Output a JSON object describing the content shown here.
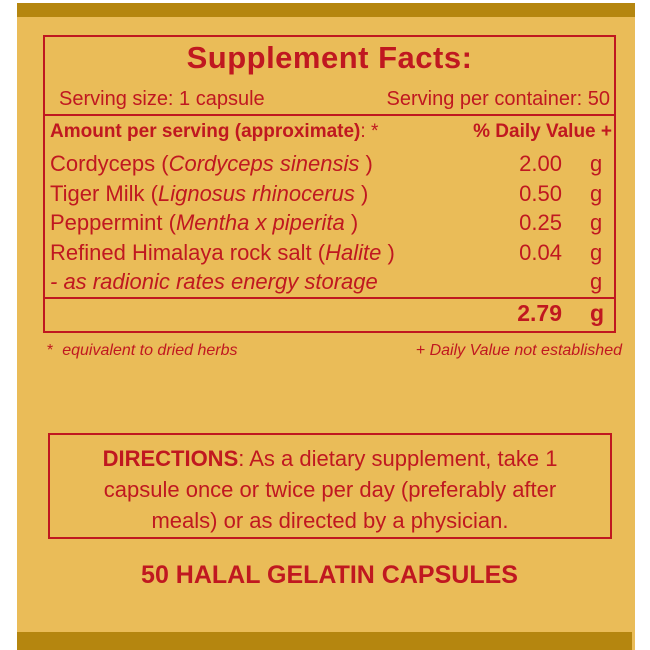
{
  "colors": {
    "label_gold": "#EABC58",
    "bar_gold": "#B5860F",
    "text_red": "#C01820",
    "page_background": "#FFFFFF"
  },
  "facts": {
    "title": "Supplement Facts:",
    "serving_size": "Serving size: 1 capsule",
    "servings_per_container": "Serving per container: 50",
    "amount_header": "Amount per serving (approximate)",
    "amount_header_suffix": ": *",
    "daily_value_header": "% Daily Value +",
    "rows": [
      {
        "prefix": "Cordyceps (",
        "italic": "Cordyceps sinensis",
        "suffix": " )",
        "amount": "2.00",
        "unit": "g"
      },
      {
        "prefix": "Tiger Milk (",
        "italic": "Lignosus rhinocerus",
        "suffix": " )",
        "amount": "0.50",
        "unit": "g"
      },
      {
        "prefix": "Peppermint (",
        "italic": "Mentha x piperita",
        "suffix": " )",
        "amount": "0.25",
        "unit": "g"
      },
      {
        "prefix": "Refined Himalaya rock salt (",
        "italic": "Halite",
        "suffix": " )",
        "amount": "0.04",
        "unit": "g"
      },
      {
        "prefix": "",
        "italic": "- as radionic rates energy storage",
        "suffix": "",
        "amount": "",
        "unit": "g"
      }
    ],
    "total": {
      "amount": "2.79",
      "unit": "g"
    },
    "footnotes": {
      "left_symbol": "*",
      "left_text": "equivalent to dried herbs",
      "right_text": "+ Daily Value not established"
    }
  },
  "directions": {
    "heading": "DIRECTIONS",
    "line1_rest": ": As a dietary supplement, take 1",
    "line2": "capsule once or twice per day (preferably after",
    "line3": "meals) or as directed by a physician."
  },
  "capsules_line": "50 HALAL GELATIN CAPSULES"
}
